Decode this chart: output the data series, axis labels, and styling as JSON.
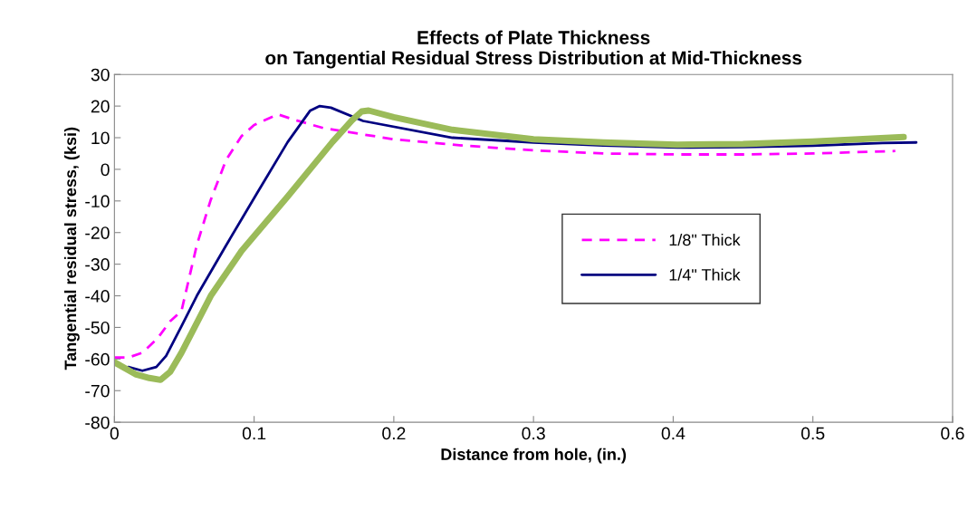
{
  "chart_data": {
    "type": "line",
    "title": "Effects of Plate Thickness\non Tangential Residual Stress Distribution at Mid-Thickness",
    "xlabel": "Distance from hole, (in.)",
    "ylabel": "Tangential residual stress, (ksi)",
    "xlim": [
      0,
      0.6
    ],
    "xticks": [
      0,
      0.1,
      0.2,
      0.3,
      0.4,
      0.5,
      0.6
    ],
    "ylim": [
      -80,
      30
    ],
    "yticks": [
      -80,
      -70,
      -60,
      -50,
      -40,
      -30,
      -20,
      -10,
      0,
      10,
      20,
      30
    ],
    "grid": false,
    "legend": "center right",
    "marker": "none",
    "series": [
      {
        "name": "1/8\" Thick",
        "color": "#ff00ff",
        "line_style": "dashed",
        "x": [
          0,
          0.01,
          0.02,
          0.031,
          0.04,
          0.048,
          0.059,
          0.069,
          0.08,
          0.091,
          0.1,
          0.117,
          0.13,
          0.15,
          0.2,
          0.25,
          0.3,
          0.35,
          0.403,
          0.45,
          0.5,
          0.559
        ],
        "values": [
          -59.5,
          -59.5,
          -58,
          -53.4,
          -48,
          -44.8,
          -23.9,
          -9.6,
          3,
          10.5,
          14,
          17.4,
          15.5,
          13,
          9.5,
          7.5,
          6,
          5,
          4.7,
          4.7,
          5,
          5.8
        ]
      },
      {
        "name": "1/4\" Thick",
        "color": "#000080",
        "line_style": "solid",
        "x": [
          0.01,
          0.02,
          0.03,
          0.037,
          0.048,
          0.059,
          0.08,
          0.102,
          0.124,
          0.14,
          0.147,
          0.155,
          0.178,
          0.242,
          0.3,
          0.35,
          0.403,
          0.45,
          0.5,
          0.55,
          0.574
        ],
        "values": [
          -62.5,
          -63.7,
          -62.5,
          -59,
          -49.6,
          -40,
          -24,
          -7.6,
          8.6,
          18.5,
          20,
          19.5,
          15.3,
          10,
          8.5,
          7.5,
          6.9,
          7,
          7.5,
          8.3,
          8.5
        ]
      },
      {
        "color": "#9bbb59",
        "line_style": "solid",
        "x": [
          0,
          0.0156,
          0.025,
          0.033,
          0.04,
          0.048,
          0.069,
          0.091,
          0.124,
          0.156,
          0.17,
          0.177,
          0.182,
          0.2,
          0.242,
          0.3,
          0.35,
          0.403,
          0.45,
          0.5,
          0.565
        ],
        "values": [
          -61,
          -64.9,
          -66,
          -66.6,
          -64,
          -58,
          -40,
          -25.8,
          -8.6,
          8.6,
          15.5,
          18.3,
          18.6,
          16.5,
          12.5,
          9.5,
          8.5,
          7.8,
          8,
          8.8,
          10.2
        ]
      }
    ]
  }
}
